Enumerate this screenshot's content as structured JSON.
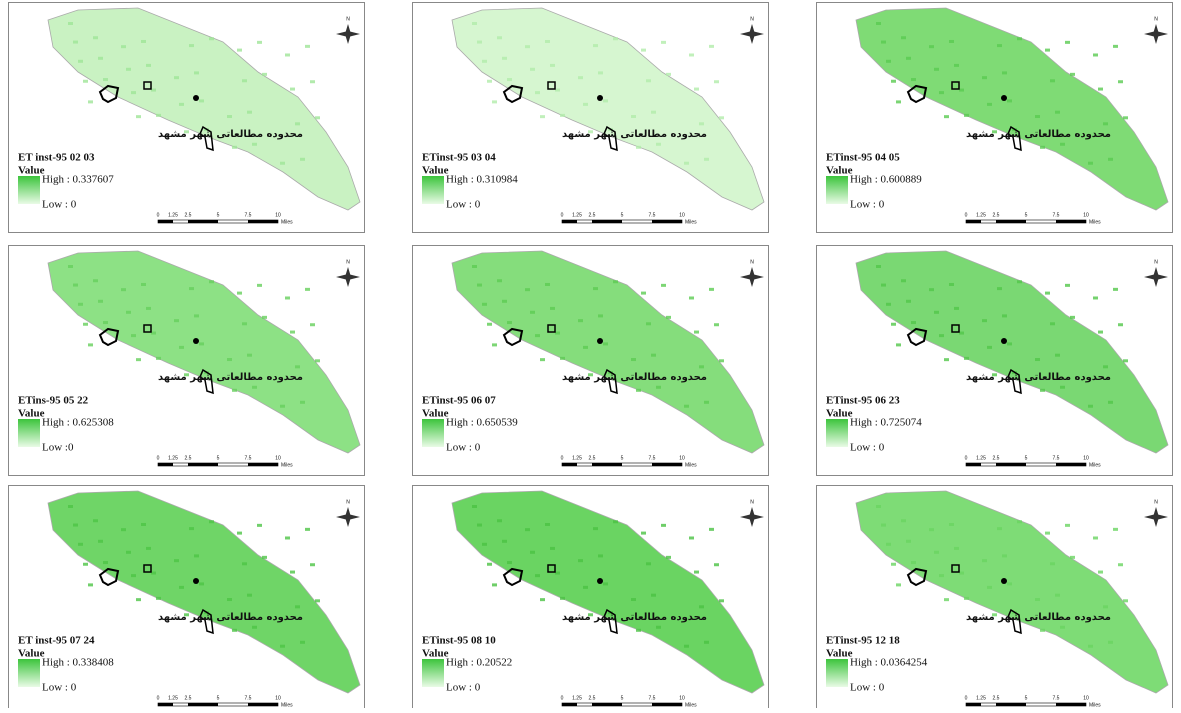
{
  "panels": [
    {
      "title": "محدوده مطالعاتی شهر مشهد",
      "label": "ET inst-95 02 03",
      "legend_heading": "Value",
      "high": "High : 0.337607",
      "low": "Low : 0"
    },
    {
      "title": "محدوده مطالعاتی شهر مشهد",
      "label": "ETinst-95 03 04",
      "legend_heading": "Value",
      "high": "High : 0.310984",
      "low": "Low : 0"
    },
    {
      "title": "محدوده مطالعاتی شهر مشهد",
      "label": "ETinst-95 04 05",
      "legend_heading": "Value",
      "high": "High : 0.600889",
      "low": "Low : 0"
    },
    {
      "title": "محدوده مطالعاتی شهر مشهد",
      "label": "ETins-95 05 22",
      "legend_heading": "Value",
      "high": "High : 0.625308",
      "low": "Low :0"
    },
    {
      "title": "محدوده مطالعاتی شهر مشهد",
      "label": "ETinst-95 06 07",
      "legend_heading": "Value",
      "high": "High : 0.650539",
      "low": "Low : 0"
    },
    {
      "title": "محدوده مطالعاتی شهر مشهد",
      "label": "ETinst-95 06 23",
      "legend_heading": "Value",
      "high": "High : 0.725074",
      "low": "Low : 0"
    },
    {
      "title": "محدوده مطالعاتی شهر مشهد",
      "label": "ET inst-95 07 24",
      "legend_heading": "Value",
      "high": "High : 0.338408",
      "low": "Low : 0"
    },
    {
      "title": "محدوده مطالعاتی شهر مشهد",
      "label": "ETinst-95 08 10",
      "legend_heading": "Value",
      "high": "High : 0.20522",
      "low": "Low : 0"
    },
    {
      "title": "محدوده مطالعاتی شهر مشهد",
      "label": "ETinst-95 12 18",
      "legend_heading": "Value",
      "high": "High : 0.0364254",
      "low": "Low : 0"
    }
  ],
  "scale_bar": {
    "ticks": [
      0,
      1.25,
      2.5,
      5,
      7.5,
      10
    ],
    "unit": "Miles"
  },
  "north": "N"
}
